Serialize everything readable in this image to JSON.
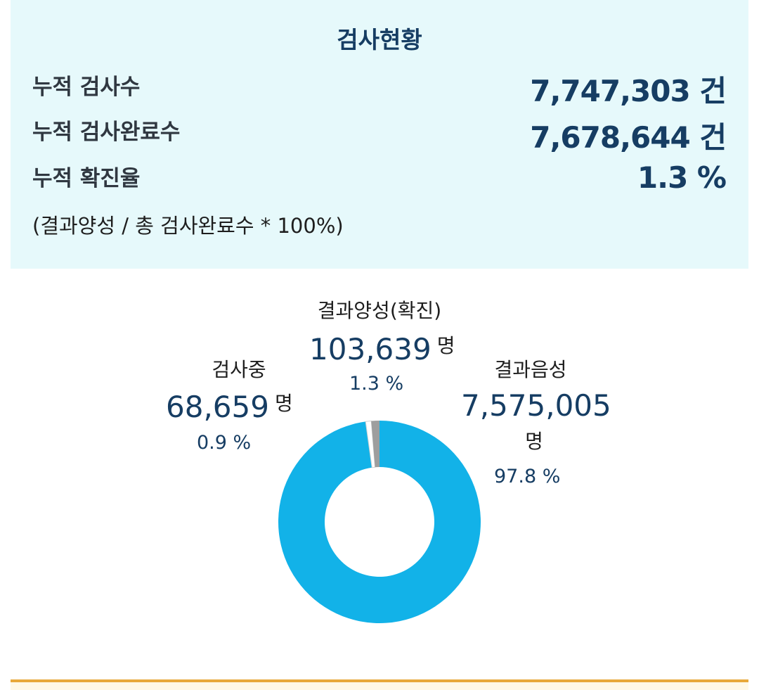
{
  "summary": {
    "title": "검사현황",
    "rows": [
      {
        "label": "누적 검사수",
        "value": "7,747,303 건"
      },
      {
        "label": "누적 검사완료수",
        "value": "7,678,644 건"
      },
      {
        "label": "누적 확진율",
        "value": "1.3 %"
      }
    ],
    "note": "(결과양성 / 총 검사완료수 * 100%)"
  },
  "chart_data": {
    "type": "pie",
    "labels": [
      "결과음성",
      "검사중",
      "결과양성(확진)"
    ],
    "counts": [
      "7,575,005",
      "68,659",
      "103,639"
    ],
    "unit": "명",
    "percents": [
      "97.8 %",
      "0.9 %",
      "1.3 %"
    ],
    "values": [
      97.8,
      0.9,
      1.3
    ],
    "colors": [
      "#12b2e8",
      "#ffffff",
      "#9e9e9e"
    ]
  },
  "legend_labels": {
    "positive": {
      "name": "결과양성(확진)",
      "count": "103,639",
      "unit": "명",
      "pct": "1.3 %"
    },
    "testing": {
      "name": "검사중",
      "count": "68,659",
      "unit": "명",
      "pct": "0.9 %"
    },
    "negative": {
      "name": "결과음성",
      "count": "7,575,005",
      "unit": "명",
      "pct": "97.8 %"
    }
  }
}
